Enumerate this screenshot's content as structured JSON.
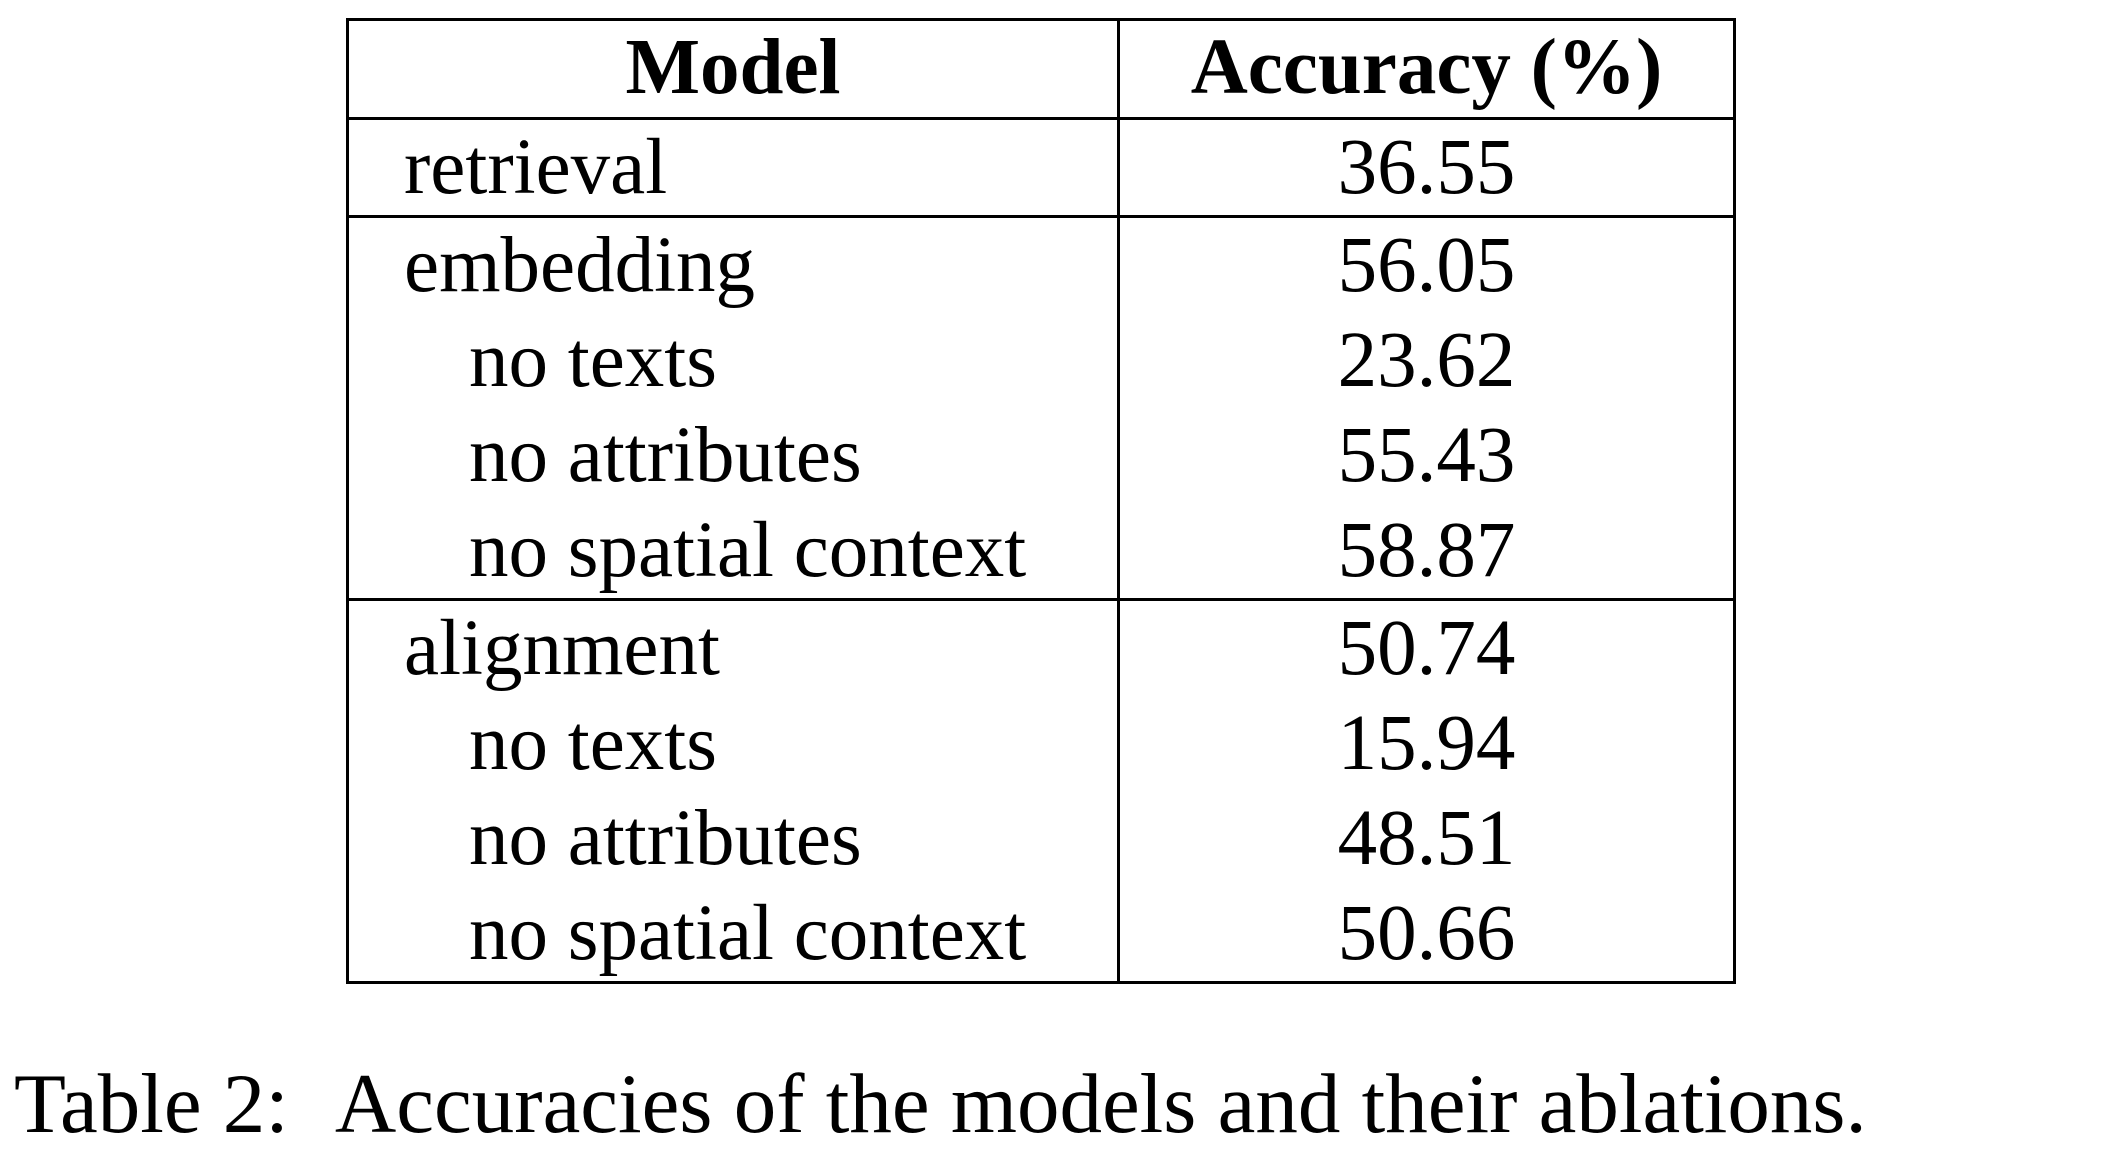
{
  "table": {
    "headers": {
      "model": "Model",
      "accuracy": "Accuracy (%)"
    },
    "rows": [
      {
        "model": "retrieval",
        "accuracy": "36.55"
      },
      {
        "model": "embedding",
        "accuracy": "56.05"
      },
      {
        "model": "no texts",
        "accuracy": "23.62"
      },
      {
        "model": "no attributes",
        "accuracy": "55.43"
      },
      {
        "model": "no spatial context",
        "accuracy": "58.87"
      },
      {
        "model": "alignment",
        "accuracy": "50.74"
      },
      {
        "model": "no texts",
        "accuracy": "15.94"
      },
      {
        "model": "no attributes",
        "accuracy": "48.51"
      },
      {
        "model": "no spatial context",
        "accuracy": "50.66"
      }
    ]
  },
  "caption": {
    "label": "Table 2:",
    "text": "Accuracies of the models and their ablations."
  }
}
